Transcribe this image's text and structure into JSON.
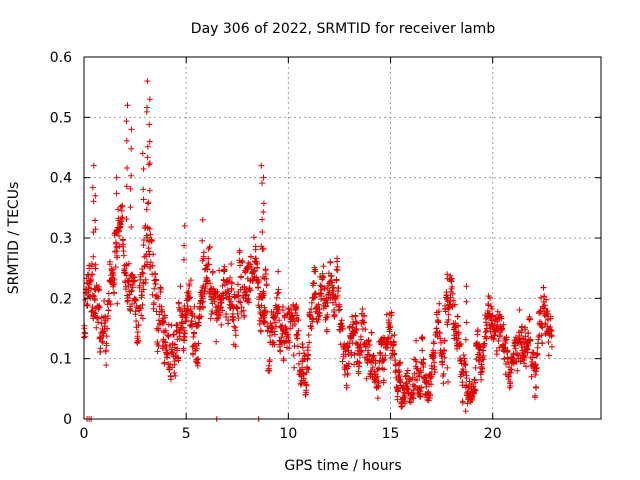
{
  "chart_data": {
    "type": "scatter",
    "title": "Day 306 of 2022, SRMTID for receiver lamb",
    "xlabel": "GPS time / hours",
    "ylabel": "SRMTID / TECUs",
    "xlim": [
      0,
      25.3
    ],
    "ylim": [
      0,
      0.6
    ],
    "xticks": [
      "0",
      "5",
      "10",
      "15",
      "20"
    ],
    "xtick_values": [
      0,
      5,
      10,
      15,
      20
    ],
    "yticks": [
      "0",
      "0.1",
      "0.2",
      "0.3",
      "0.4",
      "0.5",
      "0.6"
    ],
    "ytick_values": [
      0,
      0.1,
      0.2,
      0.3,
      0.4,
      0.5,
      0.6
    ],
    "grid": true,
    "marker": "plus",
    "color": "#e00000",
    "time_range_hours": [
      0,
      22.9
    ],
    "trend": {
      "x": [
        0,
        0.3,
        0.6,
        1.0,
        1.4,
        1.8,
        2.2,
        2.6,
        3.0,
        3.4,
        3.8,
        4.3,
        4.8,
        5.3,
        5.8,
        6.3,
        6.8,
        7.3,
        7.8,
        8.2,
        8.6,
        9.0,
        9.5,
        10.0,
        10.5,
        11.0,
        11.5,
        12.0,
        12.5,
        13.0,
        13.5,
        14.0,
        14.5,
        15.0,
        15.5,
        16.0,
        16.5,
        17.0,
        17.5,
        17.8,
        18.2,
        18.6,
        19.0,
        19.4,
        19.8,
        20.2,
        20.6,
        21.0,
        21.4,
        21.8,
        22.2,
        22.6,
        22.9
      ],
      "y": [
        0.18,
        0.2,
        0.17,
        0.12,
        0.22,
        0.3,
        0.28,
        0.26,
        0.31,
        0.22,
        0.18,
        0.15,
        0.17,
        0.19,
        0.18,
        0.17,
        0.19,
        0.16,
        0.22,
        0.24,
        0.22,
        0.18,
        0.16,
        0.15,
        0.17,
        0.18,
        0.19,
        0.14,
        0.13,
        0.12,
        0.13,
        0.12,
        0.11,
        0.1,
        0.11,
        0.1,
        0.12,
        0.11,
        0.13,
        0.21,
        0.15,
        0.12,
        0.06,
        0.1,
        0.12,
        0.1,
        0.08,
        0.07,
        0.09,
        0.08,
        0.1,
        0.11,
        0.13
      ]
    },
    "spread": {
      "x": [
        0,
        3,
        9,
        12,
        17,
        22.9
      ],
      "y": [
        0.06,
        0.08,
        0.06,
        0.05,
        0.05,
        0.04
      ]
    },
    "spikes": [
      {
        "x": 0.45,
        "y": 0.42
      },
      {
        "x": 0.55,
        "y": 0.37
      },
      {
        "x": 1.6,
        "y": 0.4
      },
      {
        "x": 2.1,
        "y": 0.52
      },
      {
        "x": 2.3,
        "y": 0.48
      },
      {
        "x": 2.9,
        "y": 0.44
      },
      {
        "x": 3.1,
        "y": 0.56
      },
      {
        "x": 3.2,
        "y": 0.53
      },
      {
        "x": 4.9,
        "y": 0.32
      },
      {
        "x": 5.8,
        "y": 0.33
      },
      {
        "x": 8.7,
        "y": 0.42
      },
      {
        "x": 8.8,
        "y": 0.4
      },
      {
        "x": 8.75,
        "y": 0.31
      },
      {
        "x": 17.8,
        "y": 0.24
      },
      {
        "x": 18.7,
        "y": 0.22
      }
    ],
    "zero_points": [
      {
        "x": 0.15,
        "y": 0
      },
      {
        "x": 0.25,
        "y": 0
      },
      {
        "x": 0.35,
        "y": 0
      },
      {
        "x": 6.5,
        "y": 0
      },
      {
        "x": 8.55,
        "y": 0
      }
    ]
  }
}
